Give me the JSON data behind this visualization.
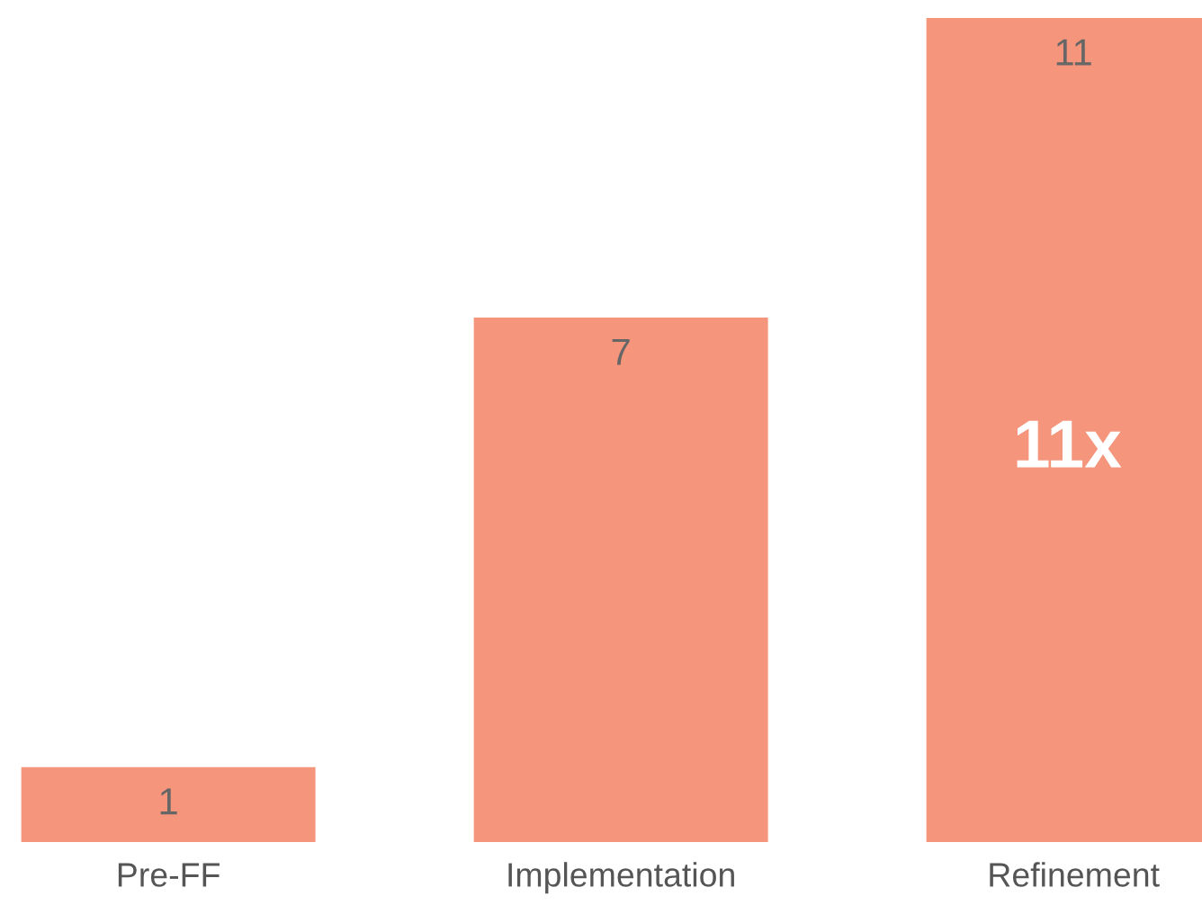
{
  "chart_data": {
    "type": "bar",
    "categories": [
      "Pre-FF",
      "Implementation",
      "Refinement"
    ],
    "values": [
      1,
      7,
      11
    ],
    "color": "#f4957c",
    "data_labels": true,
    "annotations": [
      "11x"
    ],
    "grid": false,
    "legend": false
  }
}
